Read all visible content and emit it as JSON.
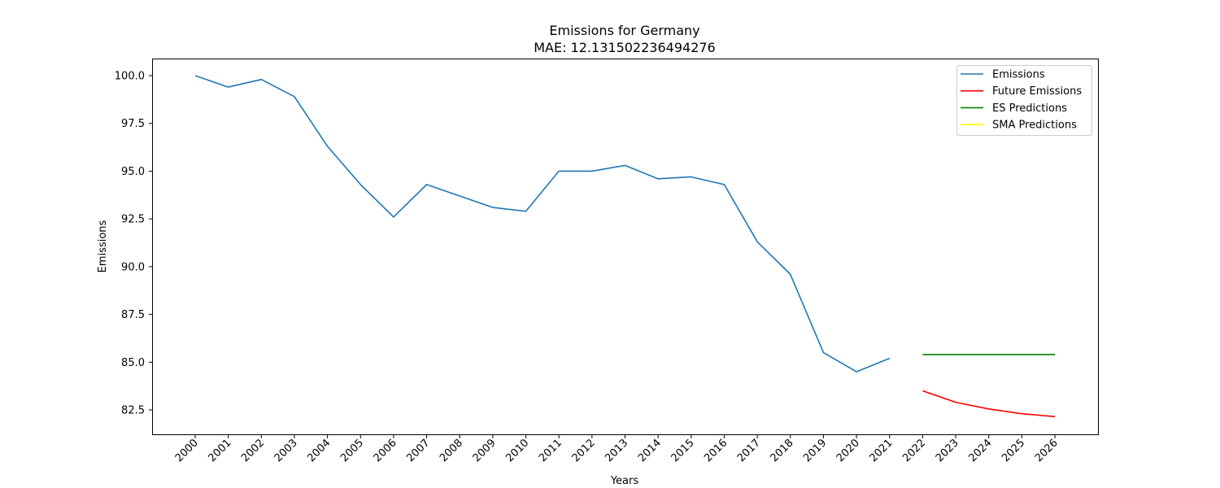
{
  "chart_data": {
    "type": "line",
    "title": "Emissions for Germany",
    "subtitle": "MAE: 12.131502236494276",
    "xlabel": "Years",
    "ylabel": "Emissions",
    "ylim": [
      81.7,
      100.9
    ],
    "yticks": [
      "82.5",
      "85.0",
      "87.5",
      "90.0",
      "92.5",
      "95.0",
      "97.5",
      "100.0"
    ],
    "categories": [
      "2000",
      "2001",
      "2002",
      "2003",
      "2004",
      "2005",
      "2006",
      "2007",
      "2008",
      "2009",
      "2010",
      "2011",
      "2012",
      "2013",
      "2014",
      "2015",
      "2016",
      "2017",
      "2018",
      "2019",
      "2020",
      "2021",
      "2022",
      "2023",
      "2024",
      "2025",
      "2026"
    ],
    "grid": false,
    "legend_position": "top-right",
    "series": [
      {
        "name": "Emissions",
        "color": "#1f77b4",
        "x": [
          "2000",
          "2001",
          "2002",
          "2003",
          "2004",
          "2005",
          "2006",
          "2007",
          "2008",
          "2009",
          "2010",
          "2011",
          "2012",
          "2013",
          "2014",
          "2015",
          "2016",
          "2017",
          "2018",
          "2019",
          "2020",
          "2021"
        ],
        "values": [
          100.0,
          99.4,
          99.8,
          98.9,
          96.3,
          94.3,
          92.6,
          94.3,
          93.7,
          93.1,
          92.9,
          95.0,
          95.0,
          95.3,
          94.6,
          94.7,
          94.3,
          91.3,
          89.6,
          85.5,
          84.5,
          85.2
        ]
      },
      {
        "name": "Future Emissions",
        "color": "#ff0000",
        "x": [
          "2022",
          "2023",
          "2024",
          "2025",
          "2026"
        ],
        "values": [
          83.5,
          82.9,
          82.55,
          82.3,
          82.15
        ]
      },
      {
        "name": "ES Predictions",
        "color": "#008000",
        "x": [
          "2022",
          "2023",
          "2024",
          "2025",
          "2026"
        ],
        "values": [
          85.4,
          85.4,
          85.4,
          85.4,
          85.4
        ]
      },
      {
        "name": "SMA Predictions",
        "color": "#ffff00",
        "x": [],
        "values": []
      }
    ]
  }
}
